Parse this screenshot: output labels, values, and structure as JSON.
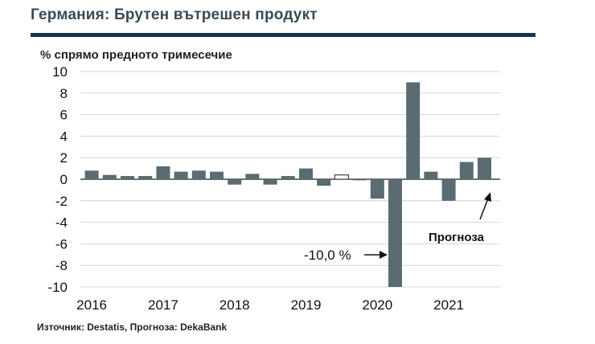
{
  "title": "Германия: Брутен вътрешен продукт",
  "source": "Източник: Destatis, Прогноза: DekaBank",
  "chart_data": {
    "type": "bar",
    "ylabel": "% спрямо предното тримесечие",
    "ylim": [
      -10,
      10
    ],
    "yticks": [
      10,
      8,
      6,
      4,
      2,
      0,
      -2,
      -4,
      -6,
      -8,
      -10
    ],
    "grid": true,
    "year_labels": [
      "2016",
      "2017",
      "2018",
      "2019",
      "2020",
      "2021"
    ],
    "quarters": [
      "2016 Q1",
      "2016 Q2",
      "2016 Q3",
      "2016 Q4",
      "2017 Q1",
      "2017 Q2",
      "2017 Q3",
      "2017 Q4",
      "2018 Q1",
      "2018 Q2",
      "2018 Q3",
      "2018 Q4",
      "2019 Q1",
      "2019 Q2",
      "2019 Q3",
      "2019 Q4",
      "2020 Q1",
      "2020 Q2",
      "2020 Q3",
      "2020 Q4",
      "2021 Q1",
      "2021 Q2",
      "2021 Q3"
    ],
    "values": [
      0.8,
      0.4,
      0.3,
      0.3,
      1.2,
      0.7,
      0.8,
      0.7,
      -0.5,
      0.5,
      -0.5,
      0.3,
      1.0,
      -0.6,
      0.4,
      -0.1,
      -1.8,
      -10.0,
      9.0,
      0.7,
      -2.0,
      1.6,
      2.0
    ],
    "hollow": [
      false,
      false,
      false,
      false,
      false,
      false,
      false,
      false,
      false,
      false,
      false,
      false,
      false,
      false,
      true,
      false,
      false,
      false,
      false,
      false,
      false,
      false,
      false
    ],
    "bar_color": "#5a6b72",
    "annotations": [
      {
        "text": "-10,0 %"
      },
      {
        "text": "Прогноза"
      }
    ]
  }
}
